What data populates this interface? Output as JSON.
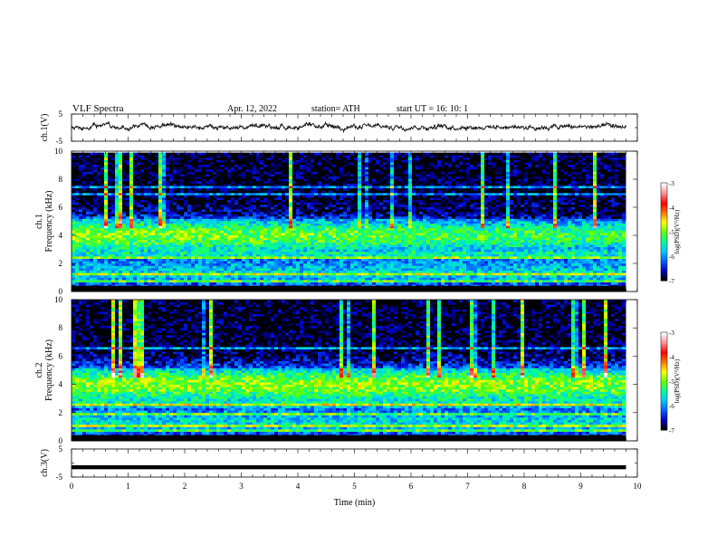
{
  "header": {
    "title": "VLF  Spectra",
    "date": "Apr. 12, 2022",
    "station": "station= ATH",
    "start": "start  UT  =    16: 10: 1"
  },
  "chart_data": [
    {
      "type": "line",
      "panel": "ch1-waveform",
      "ylabel": "ch.1(V)",
      "ylim": [
        -5,
        5
      ],
      "yticks": [
        "5",
        "-5"
      ],
      "x_range_min": [
        0,
        9.8
      ],
      "trace_level": 0.3,
      "color": "#111111"
    },
    {
      "type": "heatmap",
      "panel": "ch1-spectrogram",
      "ylabel": "ch.1\nFrequency (kHz)",
      "ylim": [
        0,
        10
      ],
      "yticks": [
        "0",
        "2",
        "4",
        "6",
        "8",
        "10"
      ],
      "x_range_min": [
        0,
        9.8
      ],
      "colorbar": {
        "label": "log(PSD)(V²/Hz)",
        "range": [
          -7,
          -3
        ],
        "ticks": [
          "-3",
          "-4",
          "-5",
          "-6",
          "-7"
        ],
        "colors": [
          "#000000",
          "#0000c8",
          "#0064ff",
          "#00c8ff",
          "#00ff96",
          "#64ff00",
          "#ffff00",
          "#ff7800",
          "#ff0000",
          "#ff8c8c",
          "#ffffff"
        ]
      }
    },
    {
      "type": "heatmap",
      "panel": "ch2-spectrogram",
      "ylabel": "ch.2\nFrequency (kHz)",
      "ylim": [
        0,
        10
      ],
      "yticks": [
        "0",
        "2",
        "4",
        "6",
        "8",
        "10"
      ],
      "x_range_min": [
        0,
        9.8
      ],
      "colorbar": {
        "label": "log(PSD)(V²/Hz)",
        "range": [
          -7,
          -3
        ],
        "ticks": [
          "-3",
          "-4",
          "-5",
          "-6",
          "-7"
        ],
        "colors": [
          "#000000",
          "#0000c8",
          "#0064ff",
          "#00c8ff",
          "#00ff96",
          "#64ff00",
          "#ffff00",
          "#ff7800",
          "#ff0000",
          "#ff8c8c",
          "#ffffff"
        ]
      }
    },
    {
      "type": "line",
      "panel": "ch3-waveform",
      "ylabel": "ch.3(V)",
      "ylim": [
        -5,
        5
      ],
      "yticks": [
        "5",
        "-5"
      ],
      "x_range_min": [
        0,
        9.8
      ],
      "trace_level": -1.5,
      "color": "#000000"
    }
  ],
  "xaxis": {
    "label": "Time  (min)",
    "ticks": [
      "0",
      "1",
      "2",
      "3",
      "4",
      "5",
      "6",
      "7",
      "8",
      "9",
      "10"
    ],
    "xlim": [
      0,
      10
    ]
  }
}
